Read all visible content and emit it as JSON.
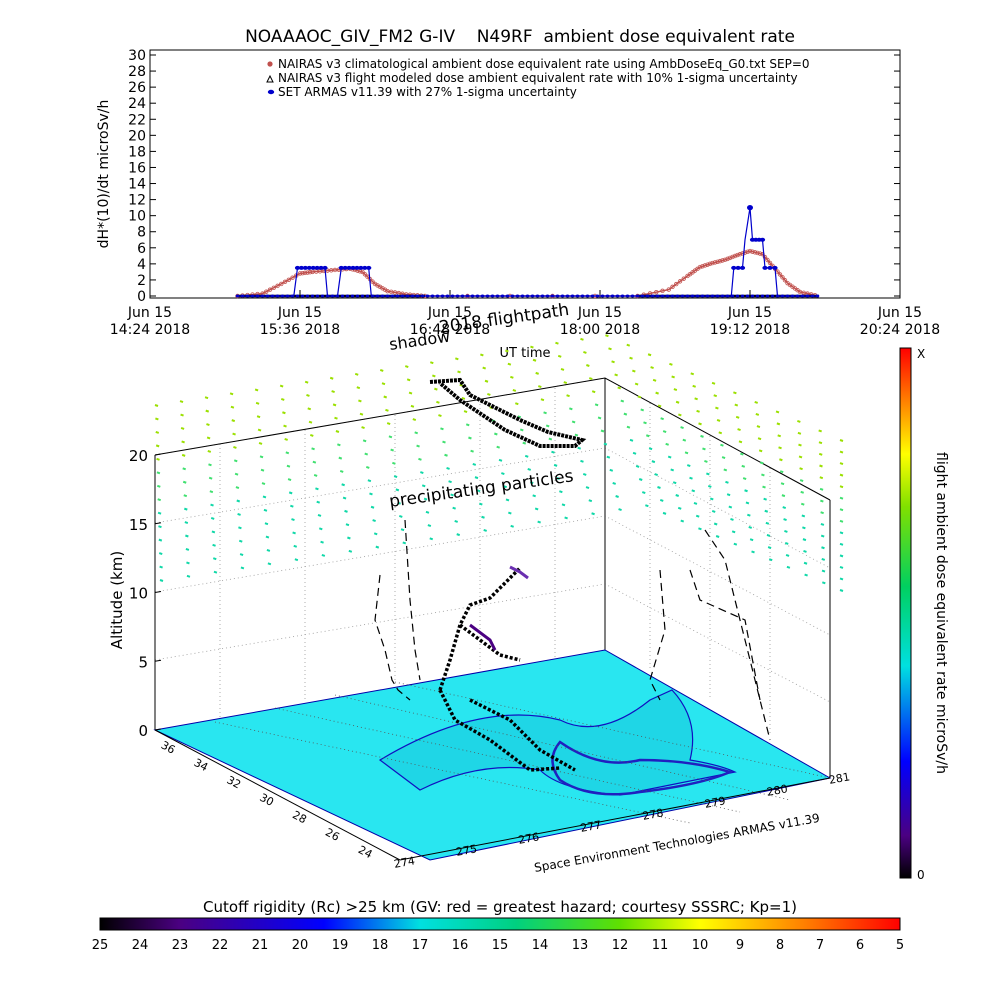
{
  "top_chart": {
    "title": "NOAAAOC_GIV_FM2 G-IV    N49RF  ambient dose equivalent rate",
    "ylabel": "dH*(10)/dt microSv/h",
    "xlabel": "UT time",
    "y_ticks": [
      "0",
      "2",
      "4",
      "6",
      "8",
      "10",
      "12",
      "14",
      "16",
      "18",
      "20",
      "22",
      "24",
      "26",
      "28",
      "30"
    ],
    "x_ticks": [
      {
        "line1": "Jun 15",
        "line2": "14:24 2018"
      },
      {
        "line1": "Jun 15",
        "line2": "15:36 2018"
      },
      {
        "line1": "Jun 15",
        "line2": "16:48 2018"
      },
      {
        "line1": "Jun 15",
        "line2": "18:00 2018"
      },
      {
        "line1": "Jun 15",
        "line2": "19:12 2018"
      },
      {
        "line1": "Jun 15",
        "line2": "20:24 2018"
      }
    ],
    "legend": [
      "NAIRAS v3 climatological ambient dose equivalent rate using AmbDoseEq_G0.txt SEP=0",
      "NAIRAS v3 flight modeled dose ambient equivalent rate with 10% 1-sigma uncertainty",
      "SET ARMAS v11.39 with 27% 1-sigma uncertainty"
    ],
    "colors": {
      "nairas_clim": "#c0504d",
      "nairas_flight": "#000000",
      "armas": "#0000cc"
    }
  },
  "chart_data": [
    {
      "type": "line",
      "title": "NOAAAOC_GIV_FM2 G-IV    N49RF  ambient dose equivalent rate",
      "xlabel": "UT time",
      "ylabel": "dH*(10)/dt microSv/h",
      "x_unit": "hours UT (Jun 15 2018)",
      "xlim": [
        14.4,
        20.4
      ],
      "ylim": [
        0,
        30
      ],
      "series": [
        {
          "name": "NAIRAS v3 climatological ambient dose equivalent rate using AmbDoseEq_G0.txt SEP=0",
          "x": [
            15.1,
            15.3,
            15.45,
            15.6,
            15.7,
            15.85,
            16.0,
            16.1,
            16.2,
            16.3,
            16.45,
            16.6,
            18.3,
            18.55,
            18.7,
            18.8,
            18.9,
            19.0,
            19.1,
            19.2,
            19.3,
            19.4,
            19.5,
            19.6,
            19.75
          ],
          "values": [
            0,
            0.3,
            1.5,
            2.8,
            3.0,
            3.2,
            3.4,
            3.0,
            1.5,
            0.6,
            0.2,
            0,
            0,
            0.8,
            2.5,
            3.6,
            4.1,
            4.5,
            5.1,
            5.6,
            5.2,
            3.4,
            1.6,
            0.5,
            0
          ]
        },
        {
          "name": "NAIRAS v3 flight modeled dose ambient equivalent rate with 10% 1-sigma uncertainty",
          "x": [
            15.1,
            16.6,
            18.3,
            19.75
          ],
          "values": [
            0,
            0,
            0,
            0
          ]
        },
        {
          "name": "SET ARMAS v11.39 with 27% 1-sigma uncertainty",
          "x": [
            15.1,
            15.55,
            15.58,
            15.8,
            15.82,
            15.9,
            15.93,
            16.15,
            16.17,
            19.05,
            19.07,
            19.14,
            19.16,
            19.2,
            19.22,
            19.3,
            19.32,
            19.4,
            19.42,
            19.75
          ],
          "values": [
            0,
            0,
            3.5,
            3.5,
            0,
            0,
            3.5,
            3.5,
            0,
            0,
            3.5,
            3.5,
            7,
            11,
            7,
            7,
            3.5,
            3.5,
            0,
            0
          ]
        }
      ]
    },
    {
      "type": "3d-surface-map",
      "zlabel": "Altitude (km)",
      "z_ticks": [
        "0",
        "5",
        "10",
        "15",
        "20"
      ],
      "lat_ticks": [
        "36",
        "34",
        "32",
        "30",
        "28",
        "26",
        "24"
      ],
      "lon_ticks": [
        "274",
        "275",
        "276",
        "277",
        "278",
        "279",
        "280",
        "281"
      ],
      "annotations": [
        "shadow",
        "2018 flightpath",
        "precipitating particles",
        "Space Environment Technologies ARMAS v11.39"
      ],
      "colorbar_right": {
        "label": "flight ambient dose equivalent rate microSv/h",
        "top": "X",
        "bottom": "0"
      },
      "colorbar_bottom": {
        "label": "Cutoff rigidity (Rc) >25 km (GV: red = greatest hazard; courtesy SSSRC; Kp=1)",
        "ticks": [
          "25",
          "24",
          "23",
          "22",
          "21",
          "20",
          "19",
          "18",
          "17",
          "16",
          "15",
          "14",
          "13",
          "12",
          "11",
          "10",
          "9",
          "8",
          "7",
          "6",
          "5"
        ]
      }
    }
  ]
}
